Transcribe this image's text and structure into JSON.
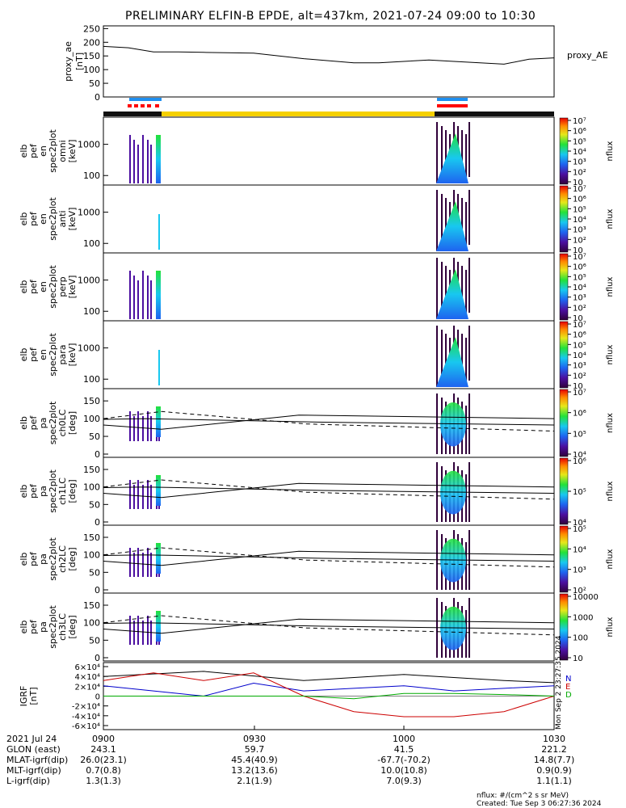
{
  "title": "PRELIMINARY ELFIN-B EPDE, alt=437km, 2021-07-24 09:00 to 10:30",
  "colors": {
    "science_zone": "#f5d000",
    "bar_dark": "#111111",
    "fast_mode": "#ff0000",
    "orbit_marker": "#1f8ff0",
    "bfield_north": "#0000cc",
    "bfield_east": "#cc0000",
    "bfield_down": "#00aa00"
  },
  "time_axis": {
    "ticks": [
      "0900",
      "0930",
      "1000",
      "1030"
    ],
    "date_label": "2021 Jul 24"
  },
  "ephemeris": {
    "rows": [
      {
        "label": "GLON (east)",
        "values": [
          "243.1",
          "59.7",
          "41.5",
          "221.2"
        ]
      },
      {
        "label": "MLAT-igrf(dip)",
        "values": [
          "26.0(23.1)",
          "45.4(40.9)",
          "-67.7(-70.2)",
          "14.8(7.7)"
        ]
      },
      {
        "label": "MLT-igrf(dip)",
        "values": [
          "0.7(0.8)",
          "13.2(13.6)",
          "10.0(10.8)",
          "0.9(0.9)"
        ]
      },
      {
        "label": "L-igrf(dip)",
        "values": [
          "1.3(1.3)",
          "2.1(1.9)",
          "7.0(9.3)",
          "1.1(1.1)"
        ]
      }
    ]
  },
  "footer": {
    "units": "nflux: #/(cm^2 s sr MeV)",
    "created": "Created: Tue Sep  3 06:27:36 2024",
    "stamp": "Mon Sep  2 23:27:35 2024"
  },
  "chart_data": [
    {
      "type": "line",
      "ylabel": "proxy_ae [nT]",
      "legend": "proxy_AE",
      "ylim": [
        0,
        260
      ],
      "yticks": [
        "0",
        "50",
        "100",
        "150",
        "200",
        "250"
      ],
      "x_minutes": [
        0,
        5,
        10,
        15,
        20,
        30,
        40,
        50,
        55,
        60,
        65,
        70,
        80,
        85,
        90
      ],
      "values": [
        185,
        180,
        165,
        165,
        163,
        160,
        140,
        125,
        125,
        130,
        135,
        130,
        120,
        138,
        143
      ]
    },
    {
      "type": "heatmap",
      "ylabel": [
        "elb",
        "pef",
        "en",
        "spec2plot",
        "omni",
        "[keV]"
      ],
      "yticks": [
        "100",
        "1000"
      ],
      "colorbar": {
        "label": "nflux",
        "ticks": [
          "10",
          "10²",
          "10³",
          "10⁴",
          "10⁵",
          "10⁶",
          "10⁷"
        ]
      }
    },
    {
      "type": "heatmap",
      "ylabel": [
        "elb",
        "pef",
        "en",
        "spec2plot",
        "anti",
        "[keV]"
      ],
      "yticks": [
        "100",
        "1000"
      ],
      "colorbar": {
        "label": "nflux",
        "ticks": [
          "10",
          "10²",
          "10³",
          "10⁴",
          "10⁵",
          "10⁶",
          "10⁷"
        ]
      }
    },
    {
      "type": "heatmap",
      "ylabel": [
        "elb",
        "pef",
        "en",
        "spec2plot",
        "perp",
        "[keV]"
      ],
      "yticks": [
        "100",
        "1000"
      ],
      "colorbar": {
        "label": "nflux",
        "ticks": [
          "10",
          "10²",
          "10³",
          "10⁴",
          "10⁵",
          "10⁶",
          "10⁷"
        ]
      }
    },
    {
      "type": "heatmap",
      "ylabel": [
        "elb",
        "pef",
        "en",
        "spec2plot",
        "para",
        "[keV]"
      ],
      "yticks": [
        "100",
        "1000"
      ],
      "colorbar": {
        "label": "nflux",
        "ticks": [
          "10",
          "10²",
          "10³",
          "10⁴",
          "10⁵",
          "10⁶",
          "10⁷"
        ]
      }
    },
    {
      "type": "heatmap",
      "ylabel": [
        "elb",
        "pef",
        "pa",
        "spec2plot",
        "ch0LC",
        "[deg]"
      ],
      "yticks": [
        "0",
        "50",
        "100",
        "150"
      ],
      "colorbar": {
        "label": "nflux",
        "ticks": [
          "10⁴",
          "10⁵",
          "10⁶",
          "10⁷"
        ]
      }
    },
    {
      "type": "heatmap",
      "ylabel": [
        "elb",
        "pef",
        "pa",
        "spec2plot",
        "ch1LC",
        "[deg]"
      ],
      "yticks": [
        "0",
        "50",
        "100",
        "150"
      ],
      "colorbar": {
        "label": "nflux",
        "ticks": [
          "10⁴",
          "10⁵",
          "10⁶"
        ]
      }
    },
    {
      "type": "heatmap",
      "ylabel": [
        "elb",
        "pef",
        "pa",
        "spec2plot",
        "ch2LC",
        "[deg]"
      ],
      "yticks": [
        "0",
        "50",
        "100",
        "150"
      ],
      "colorbar": {
        "label": "nflux",
        "ticks": [
          "10²",
          "10³",
          "10⁴",
          "10⁵"
        ]
      }
    },
    {
      "type": "heatmap",
      "ylabel": [
        "elb",
        "pef",
        "pa",
        "spec2plot",
        "ch3LC",
        "[deg]"
      ],
      "yticks": [
        "0",
        "50",
        "100",
        "150"
      ],
      "colorbar": {
        "label": "nflux",
        "ticks": [
          "10",
          "100",
          "1000",
          "10000"
        ]
      }
    },
    {
      "type": "line",
      "ylabel": "IGRF [nT]",
      "ylim": [
        -65000,
        65000
      ],
      "yticks": [
        "-6×10⁴",
        "-4×10⁴",
        "-2×10⁴",
        "0",
        "2×10⁴",
        "4×10⁴",
        "6×10⁴"
      ],
      "legend": [
        "N",
        "E",
        "D"
      ],
      "x_minutes": [
        0,
        10,
        20,
        30,
        40,
        50,
        60,
        70,
        80,
        90
      ],
      "series": [
        {
          "name": "N",
          "values": [
            20000,
            10000,
            0,
            25000,
            10000,
            15000,
            20000,
            10000,
            15000,
            20000
          ]
        },
        {
          "name": "E",
          "values": [
            30000,
            45000,
            30000,
            45000,
            0,
            -30000,
            -40000,
            -40000,
            -30000,
            0
          ]
        },
        {
          "name": "D",
          "values": [
            0,
            0,
            0,
            0,
            0,
            -5000,
            5000,
            5000,
            3000,
            0
          ]
        }
      ]
    }
  ]
}
